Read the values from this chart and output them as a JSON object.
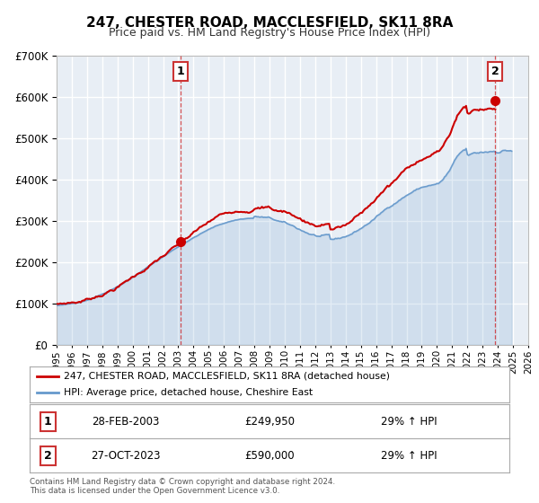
{
  "title": "247, CHESTER ROAD, MACCLESFIELD, SK11 8RA",
  "subtitle": "Price paid vs. HM Land Registry's House Price Index (HPI)",
  "hpi_label": "HPI: Average price, detached house, Cheshire East",
  "property_label": "247, CHESTER ROAD, MACCLESFIELD, SK11 8RA (detached house)",
  "red_color": "#cc0000",
  "blue_color": "#6699cc",
  "bg_color": "#e8eef5",
  "grid_color": "#ffffff",
  "sale1_date": "28-FEB-2003",
  "sale1_price": "£249,950",
  "sale1_hpi": "29% ↑ HPI",
  "sale2_date": "27-OCT-2023",
  "sale2_price": "£590,000",
  "sale2_hpi": "29% ↑ HPI",
  "sale1_year": 2003.15,
  "sale2_year": 2023.82,
  "sale1_value": 249950,
  "sale2_value": 590000,
  "xmin": 1995,
  "xmax": 2026,
  "ymin": 0,
  "ymax": 700000,
  "footer": "Contains HM Land Registry data © Crown copyright and database right 2024.\nThis data is licensed under the Open Government Licence v3.0."
}
